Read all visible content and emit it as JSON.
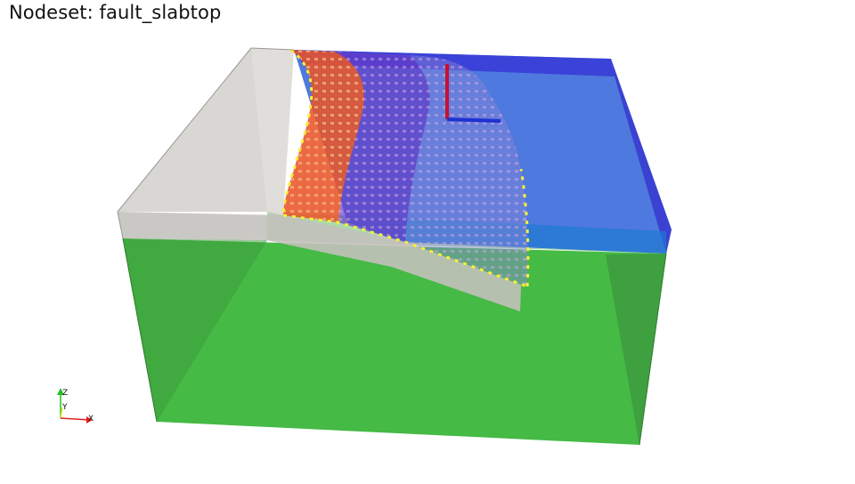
{
  "title": "Nodeset: fault_slabtop",
  "orientation_axes": {
    "z_label": "Z",
    "y_label": "Y",
    "x_label": "X"
  },
  "colors": {
    "background": "#ffffff",
    "upper_plate": "#d6d4d0",
    "lower_green": "#3fb83f",
    "blue_block": "#2f4fd0",
    "fault_red": "#e8552a",
    "fault_purple": "#6a3fc8",
    "nodeset_markers": "#f5f03a",
    "axis_x": "#e0201e",
    "axis_y": "#e8e820",
    "axis_z": "#20c020"
  },
  "icons": [
    "orientation-axes-icon",
    "glyph-axes-icon"
  ]
}
